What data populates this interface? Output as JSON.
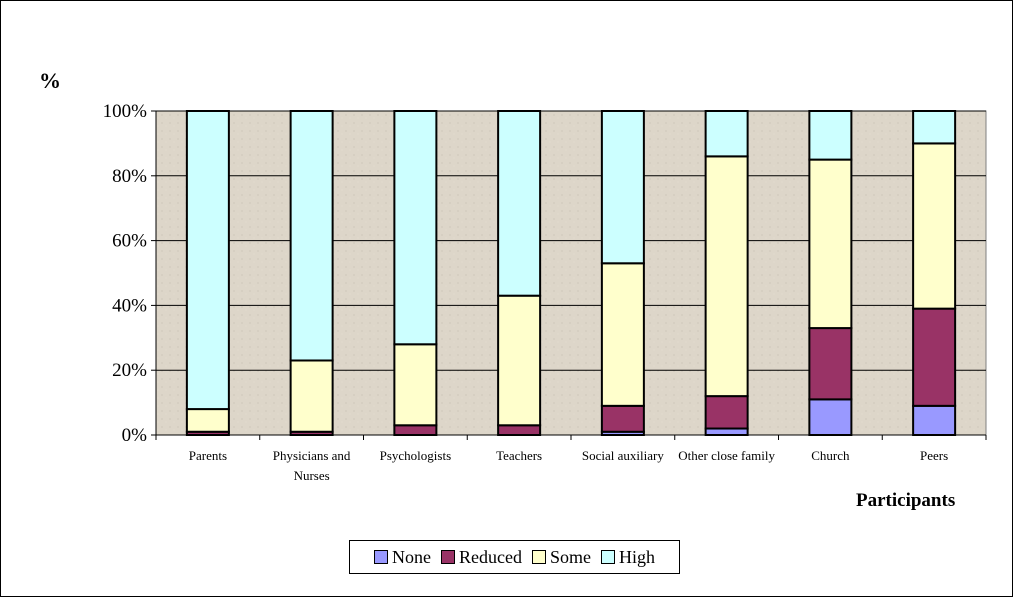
{
  "chart_data": {
    "type": "bar",
    "stacked": true,
    "percent": true,
    "categories": [
      "Parents",
      "Physicians and Nurses",
      "Psychologists",
      "Teachers",
      "Social auxiliary",
      "Other close family",
      "Church",
      "Peers"
    ],
    "series": [
      {
        "name": "None",
        "color": "#9999ff",
        "values": [
          0,
          0,
          0,
          0,
          1,
          2,
          11,
          9
        ]
      },
      {
        "name": "Reduced",
        "color": "#993366",
        "values": [
          1,
          1,
          3,
          3,
          8,
          10,
          22,
          30
        ]
      },
      {
        "name": "Some",
        "color": "#ffffcc",
        "values": [
          7,
          22,
          25,
          40,
          44,
          74,
          52,
          51
        ]
      },
      {
        "name": "High",
        "color": "#ccffff",
        "values": [
          92,
          77,
          72,
          57,
          47,
          14,
          15,
          10
        ]
      }
    ],
    "ylabel": "%",
    "xlabel": "Participants",
    "yticks": [
      "0%",
      "20%",
      "40%",
      "60%",
      "80%",
      "100%"
    ],
    "ylim": [
      0,
      100
    ],
    "grid": true,
    "legend_position": "bottom"
  }
}
